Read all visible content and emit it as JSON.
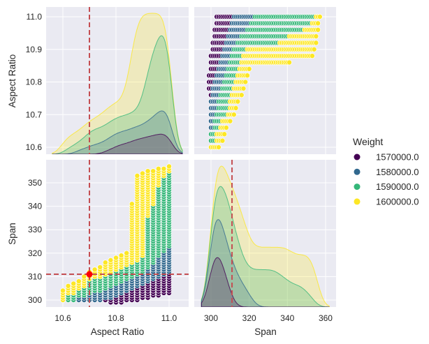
{
  "chart_data": {
    "type": "scatter",
    "kind": "pairplot",
    "variables": [
      "Aspect Ratio",
      "Span"
    ],
    "diagonal": "kde (stacked by hue, filled)",
    "hue": {
      "title": "Weight",
      "levels": [
        "1570000.0",
        "1580000.0",
        "1590000.0",
        "1600000.0"
      ],
      "colors": [
        "#440154",
        "#31688e",
        "#35b779",
        "#fde725"
      ]
    },
    "axes": {
      "aspect_ratio": {
        "label": "Aspect Ratio",
        "ticks_x": [
          "10.6",
          "10.8",
          "11.0"
        ],
        "ticks_y": [
          "10.6",
          "10.7",
          "10.8",
          "10.9",
          "11.0"
        ],
        "range": [
          10.537,
          11.074
        ],
        "range_y": [
          10.579,
          11.03
        ]
      },
      "span": {
        "label": "Span",
        "ticks_x": [
          "300",
          "320",
          "340",
          "360"
        ],
        "ticks_y": [
          "300",
          "310",
          "320",
          "330",
          "340",
          "350"
        ],
        "range": [
          294,
          368
        ],
        "range_y": [
          297,
          359.5
        ]
      }
    },
    "reference": {
      "aspect_ratio": 10.7,
      "span": 311,
      "color": "#c44e52",
      "point_color": "#ff0000"
    },
    "grid": true,
    "background": "#eaeaf2",
    "legend_placement": "right",
    "columns": [
      {
        "ar": 10.6,
        "segments": [
          [
            300,
            304,
            3
          ]
        ]
      },
      {
        "ar": 10.62,
        "segments": [
          [
            300,
            302,
            2
          ],
          [
            303,
            306,
            3
          ]
        ]
      },
      {
        "ar": 10.64,
        "segments": [
          [
            300,
            302,
            2
          ],
          [
            303,
            307,
            3
          ]
        ]
      },
      {
        "ar": 10.66,
        "segments": [
          [
            300,
            301,
            1
          ],
          [
            302,
            304,
            2
          ],
          [
            305,
            308,
            3
          ]
        ]
      },
      {
        "ar": 10.68,
        "segments": [
          [
            300,
            301,
            1
          ],
          [
            302,
            305,
            2
          ],
          [
            306,
            310,
            3
          ]
        ]
      },
      {
        "ar": 10.7,
        "segments": [
          [
            300,
            302,
            1
          ],
          [
            303,
            308,
            2
          ],
          [
            309,
            312,
            3
          ]
        ]
      },
      {
        "ar": 10.72,
        "segments": [
          [
            300,
            303,
            1
          ],
          [
            304,
            309,
            2
          ],
          [
            310,
            313,
            3
          ]
        ]
      },
      {
        "ar": 10.74,
        "segments": [
          [
            300,
            303,
            1
          ],
          [
            304,
            309,
            2
          ],
          [
            310,
            314,
            3
          ]
        ]
      },
      {
        "ar": 10.76,
        "segments": [
          [
            300,
            300,
            0
          ],
          [
            301,
            304,
            1
          ],
          [
            305,
            310,
            2
          ],
          [
            311,
            316,
            3
          ]
        ]
      },
      {
        "ar": 10.78,
        "segments": [
          [
            299,
            300,
            0
          ],
          [
            301,
            305,
            1
          ],
          [
            306,
            311,
            2
          ],
          [
            312,
            317,
            3
          ]
        ]
      },
      {
        "ar": 10.8,
        "segments": [
          [
            299,
            301,
            0
          ],
          [
            302,
            306,
            1
          ],
          [
            307,
            312,
            2
          ],
          [
            313,
            318,
            3
          ]
        ]
      },
      {
        "ar": 10.82,
        "segments": [
          [
            299,
            302,
            0
          ],
          [
            303,
            307,
            1
          ],
          [
            308,
            313,
            2
          ],
          [
            314,
            319,
            3
          ]
        ]
      },
      {
        "ar": 10.84,
        "segments": [
          [
            300,
            303,
            0
          ],
          [
            304,
            308,
            1
          ],
          [
            309,
            314,
            2
          ],
          [
            315,
            320,
            3
          ]
        ]
      },
      {
        "ar": 10.86,
        "segments": [
          [
            300,
            304,
            0
          ],
          [
            305,
            309,
            1
          ],
          [
            310,
            315,
            2
          ],
          [
            316,
            341,
            3
          ]
        ]
      },
      {
        "ar": 10.88,
        "segments": [
          [
            300,
            305,
            0
          ],
          [
            306,
            310,
            1
          ],
          [
            311,
            316,
            2
          ],
          [
            317,
            353,
            3
          ]
        ]
      },
      {
        "ar": 10.9,
        "segments": [
          [
            301,
            306,
            0
          ],
          [
            307,
            311,
            1
          ],
          [
            312,
            318,
            2
          ],
          [
            319,
            354,
            3
          ]
        ]
      },
      {
        "ar": 10.92,
        "segments": [
          [
            301,
            307,
            0
          ],
          [
            308,
            313,
            1
          ],
          [
            314,
            335,
            2
          ],
          [
            336,
            355,
            3
          ]
        ]
      },
      {
        "ar": 10.94,
        "segments": [
          [
            302,
            308,
            0
          ],
          [
            309,
            315,
            1
          ],
          [
            316,
            340,
            2
          ],
          [
            341,
            355,
            3
          ]
        ]
      },
      {
        "ar": 10.96,
        "segments": [
          [
            302,
            309,
            0
          ],
          [
            310,
            318,
            1
          ],
          [
            319,
            348,
            2
          ],
          [
            349,
            356,
            3
          ]
        ]
      },
      {
        "ar": 10.98,
        "segments": [
          [
            303,
            310,
            0
          ],
          [
            311,
            320,
            1
          ],
          [
            321,
            352,
            2
          ],
          [
            353,
            356,
            3
          ]
        ]
      },
      {
        "ar": 11.0,
        "segments": [
          [
            303,
            311,
            0
          ],
          [
            312,
            322,
            1
          ],
          [
            323,
            354,
            2
          ],
          [
            355,
            357,
            3
          ]
        ]
      }
    ]
  }
}
